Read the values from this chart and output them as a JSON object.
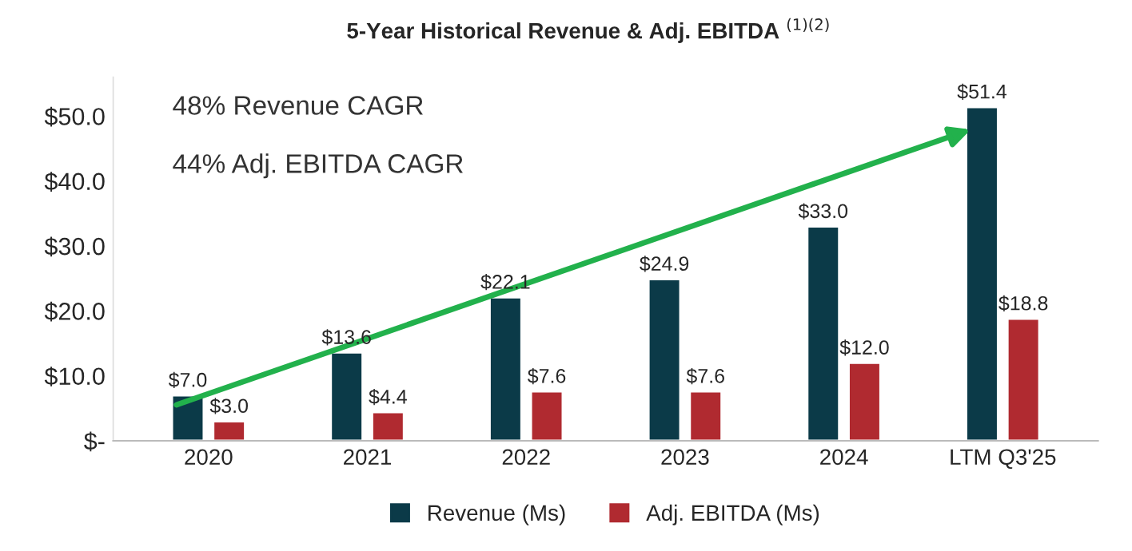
{
  "chart_data": {
    "type": "bar",
    "title": "5-Year Historical Revenue & Adj. EBITDA $^{(1)(2)}$",
    "categories": [
      "2020",
      "2021",
      "2022",
      "2023",
      "2024",
      "LTM Q3'25"
    ],
    "series": [
      {
        "name": "Revenue (Ms)",
        "color": "#0b3a48",
        "values": [
          7.0,
          13.6,
          22.1,
          24.9,
          33.0,
          51.4
        ],
        "value_labels": [
          "$7.0",
          "$13.6",
          "$22.1",
          "$24.9",
          "$33.0",
          "$51.4"
        ]
      },
      {
        "name": "Adj. EBITDA (Ms)",
        "color": "#b02a30",
        "values": [
          3.0,
          4.4,
          7.6,
          7.6,
          12.0,
          18.8
        ],
        "value_labels": [
          "$3.0",
          "$4.4",
          "$7.6",
          "$7.6",
          "$12.0",
          "$18.8"
        ]
      }
    ],
    "ylim": [
      0,
      56
    ],
    "yticks": [
      {
        "value": 0,
        "label": "$-"
      },
      {
        "value": 10,
        "label": "$10.0"
      },
      {
        "value": 20,
        "label": "$20.0"
      },
      {
        "value": 30,
        "label": "$30.0"
      },
      {
        "value": 40,
        "label": "$40.0"
      },
      {
        "value": 50,
        "label": "$50.0"
      }
    ],
    "annotations": [
      "48% Revenue CAGR",
      "44% Adj. EBITDA CAGR"
    ],
    "legend": "bottom",
    "grid": false
  }
}
